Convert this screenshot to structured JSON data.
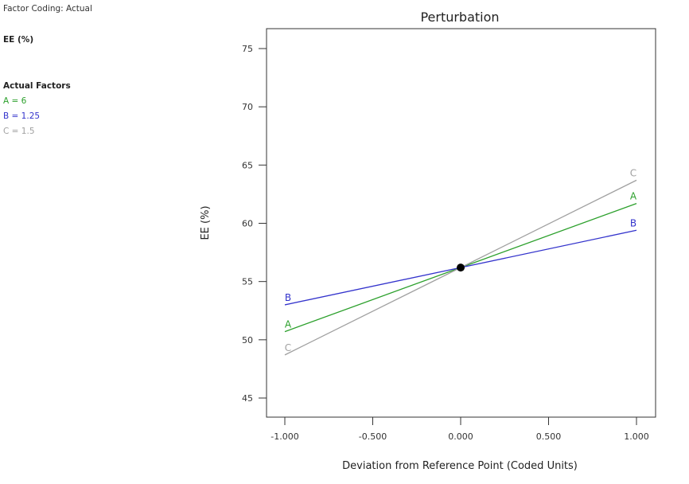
{
  "sidebar": {
    "coding_label": "Factor Coding: Actual",
    "response_label": "EE (%)",
    "actual_factors_label": "Actual Factors",
    "factors": [
      {
        "text": "A = 6",
        "color": "#2ca02c"
      },
      {
        "text": "B = 1.25",
        "color": "#3333cc"
      },
      {
        "text": "C = 1.5",
        "color": "#a0a0a0"
      }
    ]
  },
  "chart_data": {
    "type": "line",
    "title": "Perturbation",
    "xlabel": "Deviation from Reference Point (Coded Units)",
    "ylabel": "EE (%)",
    "xlim": [
      -1.0,
      1.0
    ],
    "ylim": [
      43.5,
      76.8
    ],
    "x_ticks": [
      -1.0,
      -0.5,
      0.0,
      0.5,
      1.0
    ],
    "x_tick_labels": [
      "-1.000",
      "-0.500",
      "0.000",
      "0.500",
      "1.000"
    ],
    "y_ticks": [
      45,
      50,
      55,
      60,
      65,
      70,
      75
    ],
    "y_tick_labels": [
      "45",
      "50",
      "55",
      "60",
      "65",
      "70",
      "75"
    ],
    "grid": false,
    "reference_point": {
      "x": 0.0,
      "y": 56.2
    },
    "series": [
      {
        "name": "A",
        "color": "#2ca02c",
        "x": [
          -1.0,
          0.0,
          1.0
        ],
        "y": [
          50.7,
          56.2,
          61.7
        ]
      },
      {
        "name": "B",
        "color": "#3333cc",
        "x": [
          -1.0,
          0.0,
          1.0
        ],
        "y": [
          53.0,
          56.2,
          59.4
        ]
      },
      {
        "name": "C",
        "color": "#a0a0a0",
        "x": [
          -1.0,
          0.0,
          1.0
        ],
        "y": [
          48.7,
          56.2,
          63.7
        ]
      }
    ]
  }
}
